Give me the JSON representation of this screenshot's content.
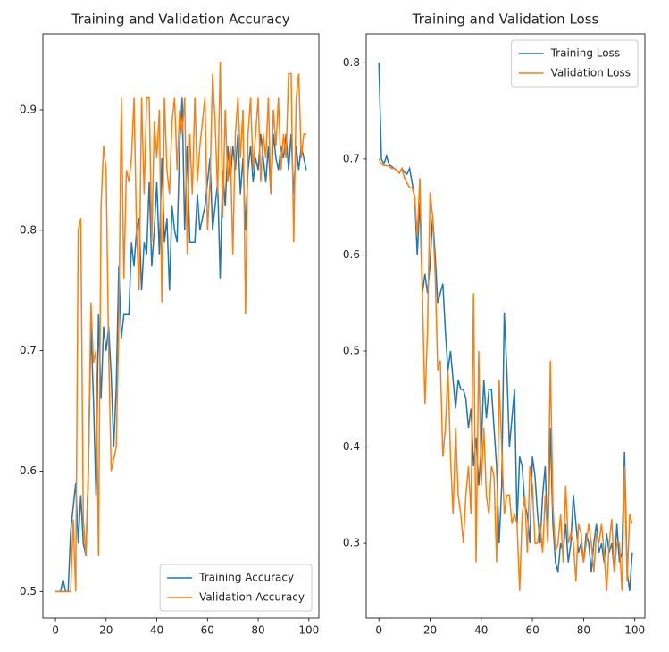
{
  "chart_data": [
    {
      "type": "line",
      "title": "Training and Validation Accuracy",
      "x": [
        0,
        1,
        2,
        3,
        4,
        5,
        6,
        7,
        8,
        9,
        10,
        11,
        12,
        13,
        14,
        15,
        16,
        17,
        18,
        19,
        20,
        21,
        22,
        23,
        24,
        25,
        26,
        27,
        28,
        29,
        30,
        31,
        32,
        33,
        34,
        35,
        36,
        37,
        38,
        39,
        40,
        41,
        42,
        43,
        44,
        45,
        46,
        47,
        48,
        49,
        50,
        51,
        52,
        53,
        54,
        55,
        56,
        57,
        58,
        59,
        60,
        61,
        62,
        63,
        64,
        65,
        66,
        67,
        68,
        69,
        70,
        71,
        72,
        73,
        74,
        75,
        76,
        77,
        78,
        79,
        80,
        81,
        82,
        83,
        84,
        85,
        86,
        87,
        88,
        89,
        90,
        91,
        92,
        93,
        94,
        95,
        96,
        97,
        98,
        99
      ],
      "xlim": [
        -4.95,
        103.95
      ],
      "ylim": [
        0.478,
        0.963
      ],
      "xticks": [
        0,
        20,
        40,
        60,
        80,
        100
      ],
      "yticks": [
        0.5,
        0.6,
        0.7,
        0.8,
        0.9
      ],
      "legend": "lower right",
      "series": [
        {
          "name": "Training Accuracy",
          "color": "#1f77b4",
          "values": [
            0.5,
            0.5,
            0.5,
            0.51,
            0.5,
            0.5,
            0.55,
            0.57,
            0.59,
            0.54,
            0.58,
            0.54,
            0.53,
            0.6,
            0.72,
            0.66,
            0.58,
            0.73,
            0.66,
            0.72,
            0.7,
            0.72,
            0.68,
            0.62,
            0.67,
            0.77,
            0.71,
            0.73,
            0.73,
            0.73,
            0.79,
            0.77,
            0.8,
            0.81,
            0.75,
            0.79,
            0.78,
            0.84,
            0.77,
            0.8,
            0.84,
            0.78,
            0.86,
            0.79,
            0.81,
            0.75,
            0.82,
            0.8,
            0.79,
            0.87,
            0.91,
            0.8,
            0.87,
            0.79,
            0.79,
            0.79,
            0.83,
            0.8,
            0.81,
            0.82,
            0.84,
            0.86,
            0.8,
            0.82,
            0.84,
            0.76,
            0.85,
            0.82,
            0.87,
            0.84,
            0.87,
            0.85,
            0.88,
            0.83,
            0.86,
            0.8,
            0.85,
            0.87,
            0.84,
            0.86,
            0.85,
            0.88,
            0.86,
            0.84,
            0.87,
            0.83,
            0.88,
            0.86,
            0.85,
            0.87,
            0.86,
            0.88,
            0.85,
            0.88,
            0.83,
            0.87,
            0.85,
            0.87,
            0.86,
            0.85
          ]
        },
        {
          "name": "Validation Accuracy",
          "color": "#ff7f0e",
          "values": [
            0.5,
            0.5,
            0.5,
            0.5,
            0.5,
            0.5,
            0.5,
            0.56,
            0.5,
            0.8,
            0.81,
            0.56,
            0.53,
            0.6,
            0.74,
            0.69,
            0.7,
            0.53,
            0.82,
            0.87,
            0.85,
            0.7,
            0.6,
            0.61,
            0.62,
            0.72,
            0.91,
            0.76,
            0.85,
            0.84,
            0.86,
            0.91,
            0.8,
            0.75,
            0.91,
            0.83,
            0.91,
            0.91,
            0.79,
            0.89,
            0.86,
            0.9,
            0.74,
            0.91,
            0.85,
            0.83,
            0.89,
            0.91,
            0.85,
            0.9,
            0.88,
            0.91,
            0.78,
            0.88,
            0.83,
            0.91,
            0.84,
            0.87,
            0.89,
            0.91,
            0.8,
            0.84,
            0.93,
            0.89,
            0.83,
            0.94,
            0.81,
            0.9,
            0.84,
            0.87,
            0.78,
            0.88,
            0.91,
            0.86,
            0.9,
            0.73,
            0.88,
            0.91,
            0.85,
            0.88,
            0.91,
            0.84,
            0.88,
            0.86,
            0.91,
            0.83,
            0.9,
            0.87,
            0.91,
            0.85,
            0.88,
            0.86,
            0.93,
            0.93,
            0.79,
            0.91,
            0.93,
            0.86,
            0.88,
            0.88
          ]
        }
      ]
    },
    {
      "type": "line",
      "title": "Training and Validation Loss",
      "x": [
        0,
        1,
        2,
        3,
        4,
        5,
        6,
        7,
        8,
        9,
        10,
        11,
        12,
        13,
        14,
        15,
        16,
        17,
        18,
        19,
        20,
        21,
        22,
        23,
        24,
        25,
        26,
        27,
        28,
        29,
        30,
        31,
        32,
        33,
        34,
        35,
        36,
        37,
        38,
        39,
        40,
        41,
        42,
        43,
        44,
        45,
        46,
        47,
        48,
        49,
        50,
        51,
        52,
        53,
        54,
        55,
        56,
        57,
        58,
        59,
        60,
        61,
        62,
        63,
        64,
        65,
        66,
        67,
        68,
        69,
        70,
        71,
        72,
        73,
        74,
        75,
        76,
        77,
        78,
        79,
        80,
        81,
        82,
        83,
        84,
        85,
        86,
        87,
        88,
        89,
        90,
        91,
        92,
        93,
        94,
        95,
        96,
        97,
        98,
        99
      ],
      "xlim": [
        -4.95,
        103.95
      ],
      "ylim": [
        0.222,
        0.83
      ],
      "xticks": [
        0,
        20,
        40,
        60,
        80,
        100
      ],
      "yticks": [
        0.3,
        0.4,
        0.5,
        0.6,
        0.7,
        0.8
      ],
      "legend": "upper right",
      "series": [
        {
          "name": "Training Loss",
          "color": "#1f77b4",
          "values": [
            0.8,
            0.7,
            0.695,
            0.703,
            0.694,
            0.692,
            0.69,
            0.688,
            0.685,
            0.69,
            0.686,
            0.684,
            0.69,
            0.675,
            0.66,
            0.6,
            0.655,
            0.56,
            0.58,
            0.56,
            0.59,
            0.64,
            0.6,
            0.55,
            0.56,
            0.57,
            0.52,
            0.48,
            0.5,
            0.47,
            0.44,
            0.47,
            0.46,
            0.46,
            0.45,
            0.42,
            0.44,
            0.38,
            0.41,
            0.36,
            0.4,
            0.47,
            0.43,
            0.46,
            0.46,
            0.42,
            0.38,
            0.3,
            0.36,
            0.54,
            0.48,
            0.4,
            0.43,
            0.46,
            0.32,
            0.39,
            0.38,
            0.34,
            0.33,
            0.3,
            0.39,
            0.37,
            0.33,
            0.3,
            0.35,
            0.38,
            0.3,
            0.42,
            0.32,
            0.28,
            0.27,
            0.3,
            0.29,
            0.32,
            0.28,
            0.3,
            0.35,
            0.32,
            0.29,
            0.3,
            0.28,
            0.31,
            0.3,
            0.27,
            0.3,
            0.32,
            0.29,
            0.3,
            0.28,
            0.31,
            0.29,
            0.3,
            0.27,
            0.32,
            0.28,
            0.29,
            0.395,
            0.27,
            0.25,
            0.29
          ]
        },
        {
          "name": "Validation Loss",
          "color": "#ff7f0e",
          "values": [
            0.7,
            0.695,
            0.693,
            0.693,
            0.692,
            0.69,
            0.69,
            0.688,
            0.685,
            0.69,
            0.68,
            0.675,
            0.67,
            0.67,
            0.66,
            0.62,
            0.68,
            0.56,
            0.445,
            0.52,
            0.665,
            0.64,
            0.58,
            0.48,
            0.49,
            0.39,
            0.42,
            0.48,
            0.39,
            0.33,
            0.42,
            0.35,
            0.33,
            0.3,
            0.35,
            0.38,
            0.33,
            0.56,
            0.28,
            0.5,
            0.36,
            0.42,
            0.35,
            0.33,
            0.38,
            0.37,
            0.28,
            0.47,
            0.4,
            0.33,
            0.35,
            0.35,
            0.32,
            0.33,
            0.32,
            0.25,
            0.33,
            0.35,
            0.29,
            0.38,
            0.36,
            0.3,
            0.3,
            0.32,
            0.29,
            0.35,
            0.3,
            0.49,
            0.34,
            0.29,
            0.3,
            0.33,
            0.28,
            0.36,
            0.3,
            0.31,
            0.3,
            0.26,
            0.32,
            0.31,
            0.28,
            0.3,
            0.32,
            0.3,
            0.27,
            0.31,
            0.3,
            0.32,
            0.29,
            0.25,
            0.3,
            0.325,
            0.27,
            0.3,
            0.3,
            0.25,
            0.38,
            0.26,
            0.33,
            0.32
          ]
        }
      ]
    }
  ]
}
